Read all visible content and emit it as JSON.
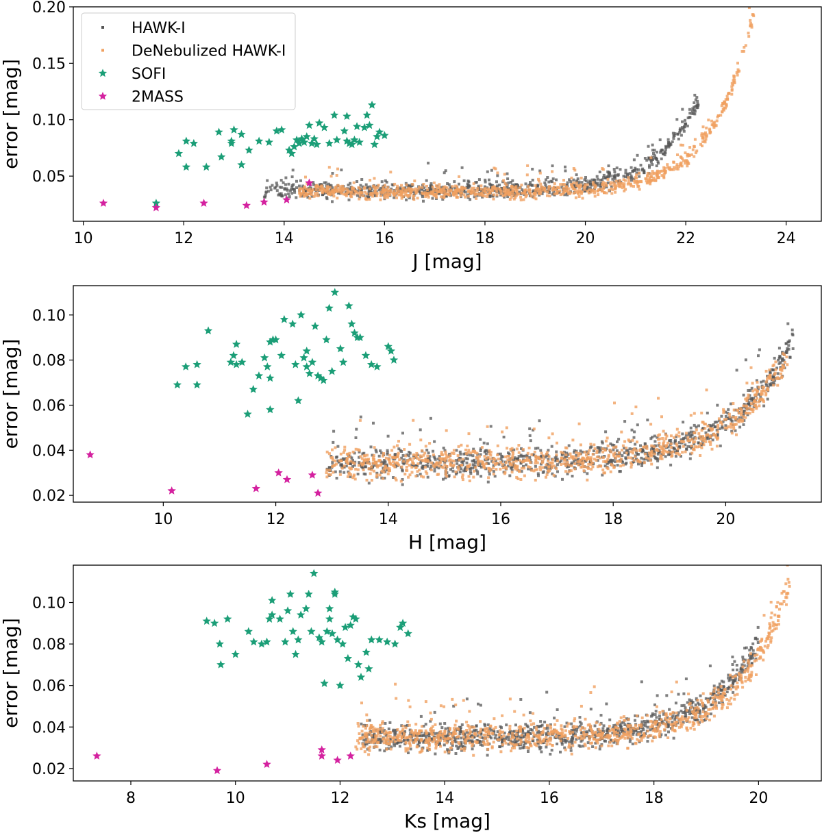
{
  "colors": {
    "hawki": "#555555",
    "denebulized": "#f0a060",
    "sofi": "#1b9e77",
    "twomass": "#d4219f"
  },
  "legend": {
    "placement": "top-left",
    "entries": [
      {
        "label": "HAWK-I",
        "color": "#555555",
        "marker": "square"
      },
      {
        "label": "DeNebulized HAWK-I",
        "color": "#f0a060",
        "marker": "square"
      },
      {
        "label": "SOFI",
        "color": "#1b9e77",
        "marker": "star"
      },
      {
        "label": "2MASS",
        "color": "#d4219f",
        "marker": "star"
      }
    ]
  },
  "chart_data": [
    {
      "type": "scatter",
      "xlabel": "J [mag]",
      "ylabel": "error [mag]",
      "xlim": [
        9.8,
        24.7
      ],
      "ylim": [
        0.01,
        0.2
      ],
      "xticks": [
        10,
        12,
        14,
        16,
        18,
        20,
        22,
        24
      ],
      "yticks": [
        0.05,
        0.1,
        0.15,
        0.2
      ],
      "ytick_labels": [
        "0.05",
        "0.10",
        "0.15",
        "0.20"
      ],
      "series": [
        {
          "name": "SOFI",
          "marker": "star",
          "points": [
            [
              11.45,
              0.026
            ],
            [
              11.9,
              0.07
            ],
            [
              12.05,
              0.081
            ],
            [
              12.05,
              0.058
            ],
            [
              12.2,
              0.079
            ],
            [
              12.45,
              0.058
            ],
            [
              12.7,
              0.089
            ],
            [
              12.75,
              0.067
            ],
            [
              12.95,
              0.079
            ],
            [
              12.95,
              0.081
            ],
            [
              13.0,
              0.091
            ],
            [
              13.15,
              0.087
            ],
            [
              13.15,
              0.06
            ],
            [
              13.3,
              0.073
            ],
            [
              13.5,
              0.081
            ],
            [
              13.7,
              0.08
            ],
            [
              13.85,
              0.09
            ],
            [
              13.95,
              0.091
            ],
            [
              14.1,
              0.073
            ],
            [
              14.15,
              0.07
            ],
            [
              14.2,
              0.076
            ],
            [
              14.25,
              0.082
            ],
            [
              14.3,
              0.079
            ],
            [
              14.35,
              0.083
            ],
            [
              14.4,
              0.08
            ],
            [
              14.45,
              0.085
            ],
            [
              14.5,
              0.095
            ],
            [
              14.55,
              0.079
            ],
            [
              14.6,
              0.083
            ],
            [
              14.65,
              0.078
            ],
            [
              14.7,
              0.097
            ],
            [
              14.8,
              0.093
            ],
            [
              14.9,
              0.079
            ],
            [
              15.0,
              0.104
            ],
            [
              15.05,
              0.082
            ],
            [
              15.2,
              0.09
            ],
            [
              15.25,
              0.103
            ],
            [
              15.25,
              0.081
            ],
            [
              15.3,
              0.079
            ],
            [
              15.35,
              0.078
            ],
            [
              15.4,
              0.082
            ],
            [
              15.45,
              0.094
            ],
            [
              15.5,
              0.08
            ],
            [
              15.6,
              0.093
            ],
            [
              15.65,
              0.104
            ],
            [
              15.7,
              0.095
            ],
            [
              15.75,
              0.113
            ],
            [
              15.8,
              0.078
            ],
            [
              15.85,
              0.085
            ],
            [
              15.9,
              0.089
            ],
            [
              16.0,
              0.086
            ]
          ]
        },
        {
          "name": "2MASS",
          "marker": "star",
          "points": [
            [
              10.4,
              0.026
            ],
            [
              11.45,
              0.022
            ],
            [
              12.4,
              0.026
            ],
            [
              13.25,
              0.024
            ],
            [
              13.6,
              0.027
            ],
            [
              14.05,
              0.029
            ],
            [
              14.5,
              0.044
            ]
          ]
        },
        {
          "name": "HAWK-I",
          "marker": "square",
          "sample": {
            "kind": "trend",
            "n": 800,
            "xmin": 13.6,
            "xmax": 22.25,
            "base": 0.037,
            "amp": 0.075,
            "tau": 0.82,
            "xref": 22.2,
            "scatter": 0.006,
            "seed": 11
          }
        },
        {
          "name": "DeNebulized HAWK-I",
          "marker": "square",
          "sample": {
            "kind": "trend",
            "n": 900,
            "xmin": 14.3,
            "xmax": 23.4,
            "base": 0.036,
            "amp": 0.15,
            "tau": 0.8,
            "xref": 23.3,
            "scatter": 0.005,
            "seed": 23
          }
        }
      ]
    },
    {
      "type": "scatter",
      "xlabel": "H [mag]",
      "ylabel": "error [mag]",
      "xlim": [
        8.4,
        21.7
      ],
      "ylim": [
        0.017,
        0.113
      ],
      "xticks": [
        10,
        12,
        14,
        16,
        18,
        20
      ],
      "yticks": [
        0.02,
        0.04,
        0.06,
        0.08,
        0.1
      ],
      "ytick_labels": [
        "0.02",
        "0.04",
        "0.06",
        "0.08",
        "0.10"
      ],
      "series": [
        {
          "name": "SOFI",
          "marker": "star",
          "points": [
            [
              10.25,
              0.069
            ],
            [
              10.4,
              0.077
            ],
            [
              10.6,
              0.078
            ],
            [
              10.6,
              0.069
            ],
            [
              10.8,
              0.093
            ],
            [
              11.2,
              0.079
            ],
            [
              11.25,
              0.082
            ],
            [
              11.3,
              0.087
            ],
            [
              11.3,
              0.078
            ],
            [
              11.4,
              0.079
            ],
            [
              11.5,
              0.056
            ],
            [
              11.6,
              0.067
            ],
            [
              11.7,
              0.073
            ],
            [
              11.8,
              0.081
            ],
            [
              11.85,
              0.077
            ],
            [
              11.9,
              0.072
            ],
            [
              11.9,
              0.058
            ],
            [
              11.9,
              0.088
            ],
            [
              11.95,
              0.089
            ],
            [
              12.0,
              0.089
            ],
            [
              12.1,
              0.082
            ],
            [
              12.15,
              0.098
            ],
            [
              12.3,
              0.096
            ],
            [
              12.35,
              0.078
            ],
            [
              12.4,
              0.062
            ],
            [
              12.45,
              0.1
            ],
            [
              12.5,
              0.081
            ],
            [
              12.55,
              0.084
            ],
            [
              12.55,
              0.077
            ],
            [
              12.6,
              0.074
            ],
            [
              12.65,
              0.079
            ],
            [
              12.7,
              0.095
            ],
            [
              12.75,
              0.073
            ],
            [
              12.8,
              0.072
            ],
            [
              12.85,
              0.071
            ],
            [
              12.9,
              0.089
            ],
            [
              12.95,
              0.103
            ],
            [
              13.0,
              0.075
            ],
            [
              13.05,
              0.11
            ],
            [
              13.15,
              0.085
            ],
            [
              13.2,
              0.079
            ],
            [
              13.3,
              0.104
            ],
            [
              13.35,
              0.096
            ],
            [
              13.4,
              0.092
            ],
            [
              13.45,
              0.09
            ],
            [
              13.5,
              0.09
            ],
            [
              13.6,
              0.082
            ],
            [
              13.7,
              0.078
            ],
            [
              13.8,
              0.077
            ],
            [
              14.0,
              0.086
            ],
            [
              14.05,
              0.084
            ],
            [
              14.1,
              0.08
            ]
          ]
        },
        {
          "name": "2MASS",
          "marker": "star",
          "points": [
            [
              8.7,
              0.038
            ],
            [
              10.15,
              0.022
            ],
            [
              11.65,
              0.023
            ],
            [
              12.05,
              0.03
            ],
            [
              12.2,
              0.027
            ],
            [
              12.65,
              0.029
            ],
            [
              12.75,
              0.021
            ]
          ]
        },
        {
          "name": "HAWK-I",
          "marker": "square",
          "sample": {
            "kind": "trend",
            "n": 900,
            "xmin": 12.9,
            "xmax": 21.2,
            "base": 0.034,
            "amp": 0.055,
            "tau": 1.1,
            "xref": 21.2,
            "scatter": 0.0055,
            "seed": 37
          }
        },
        {
          "name": "DeNebulized HAWK-I",
          "marker": "square",
          "sample": {
            "kind": "trend",
            "n": 900,
            "xmin": 12.9,
            "xmax": 21.1,
            "base": 0.034,
            "amp": 0.047,
            "tau": 1.1,
            "xref": 21.1,
            "scatter": 0.0055,
            "seed": 41
          }
        }
      ]
    },
    {
      "type": "scatter",
      "xlabel": "Ks [mag]",
      "ylabel": "error [mag]",
      "xlim": [
        6.9,
        21.2
      ],
      "ylim": [
        0.014,
        0.118
      ],
      "xticks": [
        8,
        10,
        12,
        14,
        16,
        18,
        20
      ],
      "yticks": [
        0.02,
        0.04,
        0.06,
        0.08,
        0.1
      ],
      "ytick_labels": [
        "0.02",
        "0.04",
        "0.06",
        "0.08",
        "0.10"
      ],
      "series": [
        {
          "name": "SOFI",
          "marker": "star",
          "points": [
            [
              9.45,
              0.091
            ],
            [
              9.6,
              0.09
            ],
            [
              9.7,
              0.08
            ],
            [
              9.72,
              0.07
            ],
            [
              9.85,
              0.092
            ],
            [
              10.0,
              0.075
            ],
            [
              10.25,
              0.086
            ],
            [
              10.35,
              0.081
            ],
            [
              10.5,
              0.08
            ],
            [
              10.6,
              0.081
            ],
            [
              10.65,
              0.092
            ],
            [
              10.7,
              0.101
            ],
            [
              10.7,
              0.094
            ],
            [
              10.85,
              0.092
            ],
            [
              10.95,
              0.081
            ],
            [
              11.0,
              0.096
            ],
            [
              11.05,
              0.104
            ],
            [
              11.1,
              0.086
            ],
            [
              11.15,
              0.075
            ],
            [
              11.2,
              0.082
            ],
            [
              11.25,
              0.094
            ],
            [
              11.35,
              0.097
            ],
            [
              11.4,
              0.104
            ],
            [
              11.45,
              0.086
            ],
            [
              11.5,
              0.114
            ],
            [
              11.6,
              0.083
            ],
            [
              11.65,
              0.081
            ],
            [
              11.7,
              0.061
            ],
            [
              11.75,
              0.086
            ],
            [
              11.8,
              0.092
            ],
            [
              11.8,
              0.097
            ],
            [
              11.85,
              0.085
            ],
            [
              11.9,
              0.105
            ],
            [
              11.9,
              0.104
            ],
            [
              11.95,
              0.082
            ],
            [
              12.0,
              0.06
            ],
            [
              12.05,
              0.08
            ],
            [
              12.1,
              0.088
            ],
            [
              12.15,
              0.073
            ],
            [
              12.2,
              0.089
            ],
            [
              12.25,
              0.093
            ],
            [
              12.3,
              0.092
            ],
            [
              12.35,
              0.07
            ],
            [
              12.4,
              0.064
            ],
            [
              12.5,
              0.076
            ],
            [
              12.55,
              0.068
            ],
            [
              12.6,
              0.082
            ],
            [
              12.75,
              0.082
            ],
            [
              12.9,
              0.081
            ],
            [
              13.05,
              0.08
            ],
            [
              13.15,
              0.088
            ],
            [
              13.2,
              0.09
            ],
            [
              13.3,
              0.085
            ]
          ]
        },
        {
          "name": "2MASS",
          "marker": "star",
          "points": [
            [
              7.35,
              0.026
            ],
            [
              9.65,
              0.019
            ],
            [
              10.6,
              0.022
            ],
            [
              11.65,
              0.029
            ],
            [
              11.65,
              0.026
            ],
            [
              11.95,
              0.024
            ],
            [
              12.2,
              0.026
            ]
          ]
        },
        {
          "name": "HAWK-I",
          "marker": "square",
          "sample": {
            "kind": "trend",
            "n": 950,
            "xmin": 12.4,
            "xmax": 20.0,
            "base": 0.035,
            "amp": 0.047,
            "tau": 0.95,
            "xref": 20.0,
            "scatter": 0.0055,
            "seed": 53
          }
        },
        {
          "name": "DeNebulized HAWK-I",
          "marker": "square",
          "sample": {
            "kind": "trend",
            "n": 950,
            "xmin": 12.3,
            "xmax": 20.6,
            "base": 0.035,
            "amp": 0.075,
            "tau": 0.95,
            "xref": 20.6,
            "scatter": 0.0055,
            "seed": 67
          }
        }
      ]
    }
  ]
}
